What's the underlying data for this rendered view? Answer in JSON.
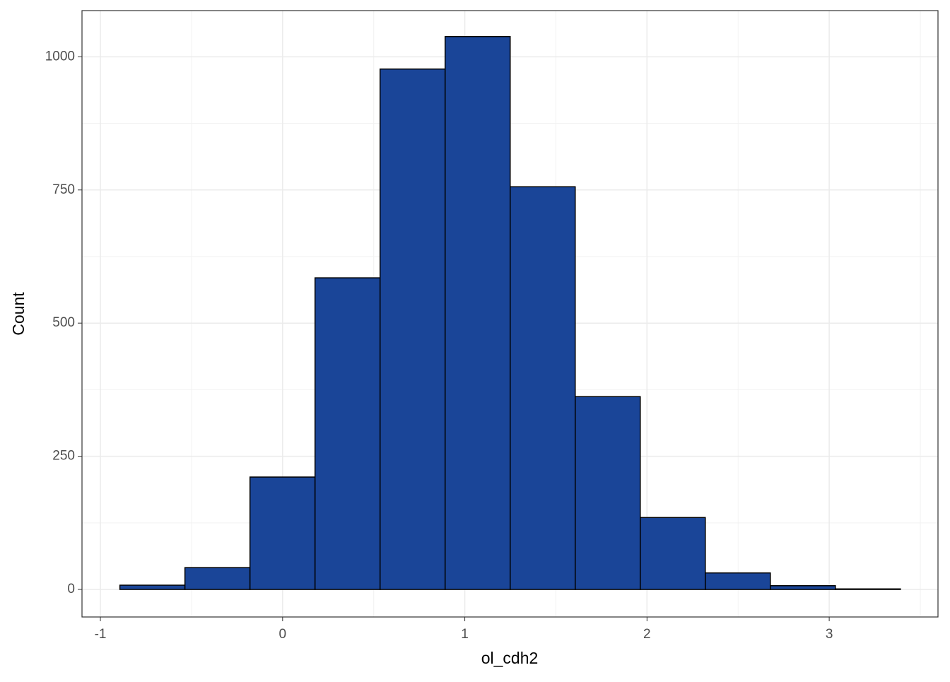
{
  "chart_data": {
    "type": "histogram",
    "x_label": "ol_cdh2",
    "y_label": "Count",
    "bins": [
      -0.893,
      -0.536,
      -0.179,
      0.178,
      0.535,
      0.892,
      1.249,
      1.606,
      1.963,
      2.32,
      2.677,
      3.034,
      3.391
    ],
    "values": [
      8,
      41,
      211,
      585,
      977,
      1038,
      756,
      362,
      135,
      31,
      7,
      1
    ],
    "color": "#1a4598",
    "edge_color": "#000000",
    "xlim": [
      -1.101,
      3.597
    ],
    "ylim": [
      -51.7,
      1086.7
    ],
    "xticks": [
      -1,
      0,
      1,
      2,
      3
    ],
    "yticks": [
      0,
      250,
      500,
      750,
      1000
    ],
    "grid": true
  }
}
